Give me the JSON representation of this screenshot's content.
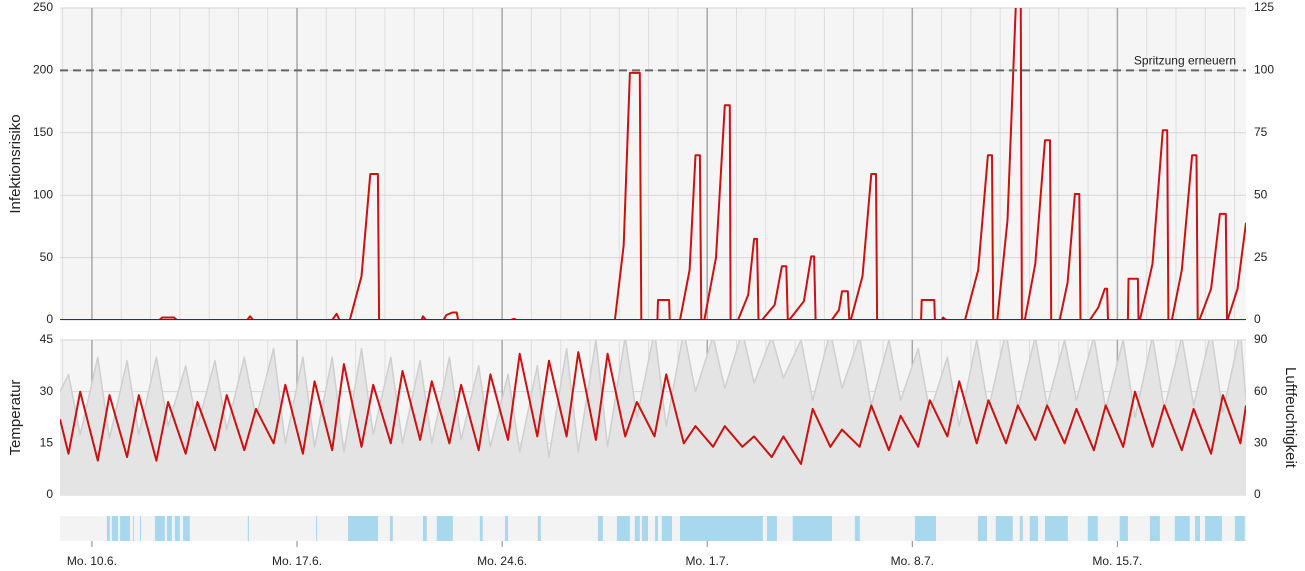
{
  "chart_data": [
    {
      "type": "line",
      "ylabel": "Infektionsrisiko",
      "xlim": [
        -1.09,
        39.39
      ],
      "ylim": [
        0,
        250
      ],
      "yticks": [
        0,
        50,
        100,
        150,
        200,
        250
      ],
      "y2lim": [
        0,
        125
      ],
      "y2ticks": [
        0,
        25,
        50,
        75,
        100,
        125
      ],
      "grid": true,
      "annotation": {
        "y": 200,
        "label": "Spritzung erneuern"
      },
      "series": [
        {
          "color": "#cc1111",
          "x": [
            -1.09,
            2.3,
            2.4,
            2.8,
            2.9,
            5.3,
            5.4,
            5.5,
            8.2,
            8.35,
            8.45,
            8.8,
            9.2,
            9.5,
            9.76,
            9.8,
            11.25,
            11.3,
            11.4,
            12.0,
            12.1,
            12.3,
            12.45,
            12.5,
            14.3,
            14.4,
            14.5,
            17.85,
            18.15,
            18.36,
            18.7,
            18.75,
            19.3,
            19.32,
            19.7,
            19.72,
            20.07,
            20.4,
            20.6,
            20.75,
            20.8,
            20.9,
            21.3,
            21.6,
            21.77,
            21.8,
            22.05,
            22.4,
            22.6,
            22.7,
            22.75,
            22.87,
            23.3,
            23.55,
            23.7,
            23.75,
            23.8,
            24.3,
            24.55,
            24.65,
            24.7,
            25.25,
            25.5,
            25.6,
            25.8,
            25.85,
            25.9,
            26.3,
            26.6,
            26.76,
            26.8,
            28.3,
            28.32,
            28.75,
            28.77,
            29.0,
            29.05,
            29.15,
            29.8,
            30.25,
            30.58,
            30.72,
            30.76,
            30.9,
            31.25,
            31.55,
            31.7,
            31.74,
            31.84,
            32.2,
            32.53,
            32.7,
            32.74,
            33.03,
            33.3,
            33.55,
            33.7,
            33.74,
            34.06,
            34.35,
            34.57,
            34.65,
            34.68,
            35.36,
            35.38,
            35.7,
            35.72,
            35.77,
            36.2,
            36.55,
            36.7,
            36.74,
            36.86,
            37.2,
            37.55,
            37.7,
            37.74,
            37.8,
            38.2,
            38.5,
            38.7,
            38.74,
            38.76,
            39.1,
            39.39
          ],
          "values": [
            0,
            0,
            2,
            2,
            0,
            0,
            3,
            0,
            0,
            5,
            0,
            0,
            35,
            117,
            117,
            0,
            0,
            3,
            0,
            0,
            4,
            6,
            6,
            0,
            0,
            1,
            0,
            0,
            60,
            198,
            198,
            0,
            0,
            16,
            16,
            0,
            0,
            40,
            132,
            132,
            0,
            0,
            50,
            172,
            172,
            0,
            0,
            20,
            65,
            65,
            0,
            0,
            12,
            43,
            43,
            0,
            0,
            15,
            51,
            51,
            0,
            0,
            8,
            23,
            23,
            0,
            0,
            35,
            117,
            117,
            0,
            0,
            16,
            16,
            0,
            0,
            2,
            0,
            0,
            40,
            132,
            132,
            0,
            0,
            80,
            262,
            262,
            0,
            0,
            45,
            144,
            144,
            0,
            0,
            30,
            101,
            101,
            0,
            0,
            10,
            25,
            25,
            0,
            0,
            33,
            33,
            0,
            0,
            45,
            152,
            152,
            0,
            0,
            40,
            132,
            132,
            0,
            0,
            25,
            85,
            85,
            0,
            0,
            25,
            78
          ]
        },
        {
          "color": "#1f1fd0",
          "x": [
            -1.09,
            39.39
          ],
          "values": [
            0,
            0
          ]
        }
      ]
    },
    {
      "type": "line",
      "ylabel": "Temperatur",
      "y2label": "Luftfeuchtigkeit",
      "xlim": [
        -1.09,
        39.39
      ],
      "ylim": [
        0,
        45
      ],
      "yticks": [
        0,
        15,
        30,
        45
      ],
      "y2lim": [
        0,
        90
      ],
      "y2ticks": [
        0,
        30,
        60,
        90
      ],
      "grid": true,
      "series": [
        {
          "color": "#cfcfcf",
          "fill": "#e4e4e4",
          "axis": "y2",
          "x": [
            -1.09,
            -0.8,
            -0.4,
            0.2,
            0.6,
            1.2,
            1.6,
            2.2,
            2.6,
            3.2,
            3.6,
            4.2,
            4.6,
            5.2,
            5.6,
            6.2,
            6.6,
            7.2,
            7.6,
            8.2,
            8.6,
            9.2,
            9.6,
            10.2,
            10.6,
            11.2,
            11.6,
            12.2,
            12.6,
            13.2,
            13.6,
            14.2,
            14.6,
            15.2,
            15.6,
            16.2,
            16.6,
            17.2,
            17.6,
            18.2,
            18.6,
            19.2,
            19.6,
            20.2,
            20.6,
            21.2,
            21.6,
            22.2,
            22.6,
            23.2,
            23.6,
            24.2,
            24.6,
            25.2,
            25.6,
            26.2,
            26.6,
            27.2,
            27.6,
            28.2,
            28.6,
            29.2,
            29.6,
            30.2,
            30.6,
            31.2,
            31.6,
            32.2,
            32.6,
            33.2,
            33.6,
            34.2,
            34.6,
            35.2,
            35.6,
            36.2,
            36.6,
            37.2,
            37.6,
            38.2,
            38.6,
            39.2,
            39.39
          ],
          "values": [
            60,
            70,
            35,
            80,
            33,
            78,
            35,
            80,
            40,
            75,
            40,
            78,
            38,
            80,
            45,
            85,
            30,
            80,
            28,
            80,
            25,
            85,
            35,
            80,
            30,
            78,
            30,
            80,
            32,
            75,
            28,
            70,
            25,
            75,
            22,
            85,
            25,
            90,
            28,
            92,
            45,
            95,
            40,
            95,
            60,
            92,
            62,
            95,
            65,
            92,
            68,
            90,
            55,
            95,
            62,
            92,
            52,
            90,
            55,
            85,
            48,
            80,
            40,
            90,
            50,
            95,
            50,
            92,
            52,
            90,
            55,
            92,
            50,
            90,
            45,
            92,
            50,
            92,
            52,
            95,
            48,
            95,
            55
          ]
        },
        {
          "color": "#cc1111",
          "x": [
            -1.09,
            -0.8,
            -0.4,
            0.2,
            0.6,
            1.2,
            1.6,
            2.2,
            2.6,
            3.2,
            3.6,
            4.2,
            4.6,
            5.2,
            5.6,
            6.2,
            6.6,
            7.2,
            7.6,
            8.2,
            8.6,
            9.2,
            9.6,
            10.2,
            10.6,
            11.2,
            11.6,
            12.2,
            12.6,
            13.2,
            13.6,
            14.2,
            14.6,
            15.2,
            15.6,
            16.2,
            16.6,
            17.2,
            17.6,
            18.2,
            18.6,
            19.2,
            19.6,
            20.2,
            20.6,
            21.2,
            21.6,
            22.2,
            22.6,
            23.2,
            23.6,
            24.2,
            24.6,
            25.2,
            25.6,
            26.2,
            26.6,
            27.2,
            27.6,
            28.2,
            28.6,
            29.2,
            29.6,
            30.2,
            30.6,
            31.2,
            31.6,
            32.2,
            32.6,
            33.2,
            33.6,
            34.2,
            34.6,
            35.2,
            35.6,
            36.2,
            36.6,
            37.2,
            37.6,
            38.2,
            38.6,
            39.2,
            39.39
          ],
          "values": [
            22,
            12,
            30,
            10,
            29,
            11,
            29,
            10,
            27,
            12,
            27,
            13,
            29,
            13,
            25,
            15,
            32,
            12,
            33,
            13,
            38,
            14,
            32,
            15,
            36,
            16,
            33,
            15,
            32,
            13,
            35,
            16,
            41,
            17,
            39,
            17,
            41.5,
            16,
            41,
            17,
            27,
            17,
            35,
            15,
            20,
            14,
            20,
            14,
            17,
            11,
            17,
            9,
            25,
            14,
            19,
            14,
            26,
            13,
            23,
            14,
            27.5,
            17,
            33,
            15,
            27.5,
            15,
            26,
            16,
            26,
            15,
            25,
            13,
            26,
            14,
            30,
            14,
            26,
            13,
            25,
            12,
            29,
            15,
            26
          ]
        }
      ]
    },
    {
      "type": "timeline",
      "xlim": [
        -1.09,
        39.39
      ],
      "color": "#a8d8ee",
      "xticks": [
        {
          "value": 0,
          "label": "Mo. 10.6."
        },
        {
          "value": 7,
          "label": "Mo. 17.6."
        },
        {
          "value": 14,
          "label": "Mo. 24.6."
        },
        {
          "value": 21,
          "label": "Mo. 1.7."
        },
        {
          "value": 28,
          "label": "Mo. 8.7."
        },
        {
          "value": 35,
          "label": "Mo. 15.7."
        }
      ],
      "intervals": [
        [
          0.51,
          0.61
        ],
        [
          0.68,
          0.89
        ],
        [
          0.96,
          1.3
        ],
        [
          1.4,
          1.43
        ],
        [
          1.64,
          1.67
        ],
        [
          2.15,
          2.49
        ],
        [
          2.56,
          2.73
        ],
        [
          2.83,
          3.0
        ],
        [
          3.11,
          3.34
        ],
        [
          5.32,
          5.36
        ],
        [
          7.65,
          7.68
        ],
        [
          8.74,
          9.76
        ],
        [
          10.17,
          10.27
        ],
        [
          11.3,
          11.43
        ],
        [
          11.77,
          12.32
        ],
        [
          13.24,
          13.34
        ],
        [
          14.1,
          14.2
        ],
        [
          15.22,
          15.32
        ],
        [
          17.27,
          17.44
        ],
        [
          17.92,
          18.36
        ],
        [
          18.53,
          18.7
        ],
        [
          18.77,
          18.98
        ],
        [
          19.22,
          19.32
        ],
        [
          19.45,
          19.8
        ],
        [
          20.07,
          22.9
        ],
        [
          23.04,
          23.38
        ],
        [
          23.92,
          25.26
        ],
        [
          26.04,
          26.21
        ],
        [
          28.09,
          28.81
        ],
        [
          30.24,
          30.55
        ],
        [
          30.85,
          31.43
        ],
        [
          31.67,
          31.77
        ],
        [
          32.01,
          32.29
        ],
        [
          32.53,
          33.31
        ],
        [
          33.99,
          34.33
        ],
        [
          35.08,
          35.36
        ],
        [
          36.11,
          36.45
        ],
        [
          36.96,
          37.47
        ],
        [
          37.65,
          37.82
        ],
        [
          37.99,
          38.57
        ],
        [
          39.01,
          39.35
        ]
      ]
    }
  ]
}
